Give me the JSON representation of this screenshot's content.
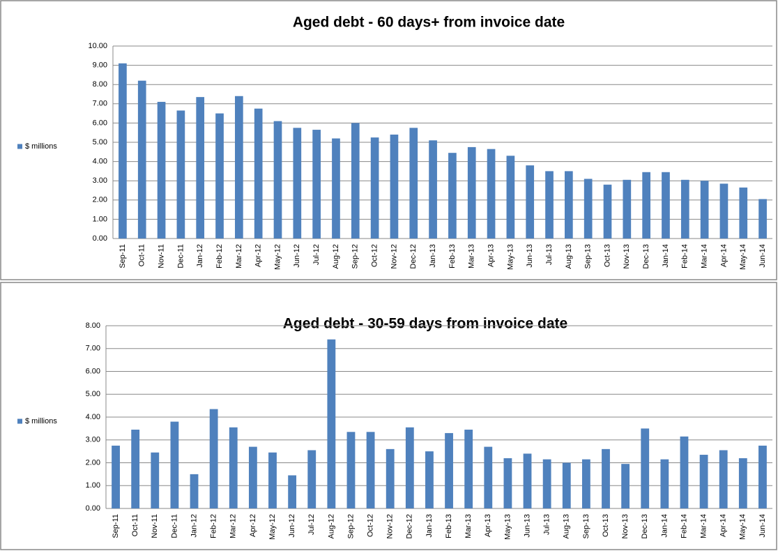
{
  "chart_data": [
    {
      "type": "bar",
      "title": "Aged debt - 60 days+ from invoice date",
      "categories": [
        "Sep-11",
        "Oct-11",
        "Nov-11",
        "Dec-11",
        "Jan-12",
        "Feb-12",
        "Mar-12",
        "Apr-12",
        "May-12",
        "Jun-12",
        "Jul-12",
        "Aug-12",
        "Sep-12",
        "Oct-12",
        "Nov-12",
        "Dec-12",
        "Jan-13",
        "Feb-13",
        "Mar-13",
        "Apr-13",
        "May-13",
        "Jun-13",
        "Jul-13",
        "Aug-13",
        "Sep-13",
        "Oct-13",
        "Nov-13",
        "Dec-13",
        "Jan-14",
        "Feb-14",
        "Mar-14",
        "Apr-14",
        "May-14",
        "Jun-14"
      ],
      "series": [
        {
          "name": "$ millions",
          "color": "#4f81bd",
          "values": [
            9.1,
            8.2,
            7.1,
            6.65,
            7.35,
            6.5,
            7.4,
            6.75,
            6.1,
            5.75,
            5.65,
            5.2,
            6.0,
            5.25,
            5.4,
            5.75,
            5.1,
            4.45,
            4.75,
            4.65,
            4.3,
            3.8,
            3.5,
            3.5,
            3.1,
            2.8,
            3.05,
            3.45,
            3.45,
            3.05,
            3.0,
            2.85,
            2.65,
            2.05
          ]
        }
      ],
      "ylim": [
        0,
        10
      ],
      "yticks": [
        {
          "value": 0,
          "label": "0.00"
        },
        {
          "value": 1,
          "label": "1.00"
        },
        {
          "value": 2,
          "label": "2.00"
        },
        {
          "value": 3,
          "label": "3.00"
        },
        {
          "value": 4,
          "label": "4.00"
        },
        {
          "value": 5,
          "label": "5.00"
        },
        {
          "value": 6,
          "label": "6.00"
        },
        {
          "value": 7,
          "label": "7.00"
        },
        {
          "value": 8,
          "label": "8.00"
        },
        {
          "value": 9,
          "label": "9.00"
        },
        {
          "value": 10,
          "label": "10.00"
        }
      ],
      "grid": true,
      "legend": "left"
    },
    {
      "type": "bar",
      "title": "Aged debt - 30-59 days from invoice date",
      "categories": [
        "Sep-11",
        "Oct-11",
        "Nov-11",
        "Dec-11",
        "Jan-12",
        "Feb-12",
        "Mar-12",
        "Apr-12",
        "May-12",
        "Jun-12",
        "Jul-12",
        "Aug-12",
        "Sep-12",
        "Oct-12",
        "Nov-12",
        "Dec-12",
        "Jan-13",
        "Feb-13",
        "Mar-13",
        "Apr-13",
        "May-13",
        "Jun-13",
        "Jul-13",
        "Aug-13",
        "Sep-13",
        "Oct-13",
        "Nov-13",
        "Dec-13",
        "Jan-14",
        "Feb-14",
        "Mar-14",
        "Apr-14",
        "May-14",
        "Jun-14"
      ],
      "series": [
        {
          "name": "$ millions",
          "color": "#4f81bd",
          "values": [
            2.75,
            3.45,
            2.45,
            3.8,
            1.5,
            4.35,
            3.55,
            2.7,
            2.45,
            1.45,
            2.55,
            7.4,
            3.35,
            3.35,
            2.6,
            3.55,
            2.5,
            3.3,
            3.45,
            2.7,
            2.2,
            2.4,
            2.15,
            2.0,
            2.15,
            2.6,
            1.95,
            3.5,
            2.15,
            3.15,
            2.35,
            2.55,
            2.2,
            2.75
          ]
        }
      ],
      "ylim": [
        0,
        8
      ],
      "yticks": [
        {
          "value": 0,
          "label": "0.00"
        },
        {
          "value": 1,
          "label": "1.00"
        },
        {
          "value": 2,
          "label": "2.00"
        },
        {
          "value": 3,
          "label": "3.00"
        },
        {
          "value": 4,
          "label": "4.00"
        },
        {
          "value": 5,
          "label": "5.00"
        },
        {
          "value": 6,
          "label": "6.00"
        },
        {
          "value": 7,
          "label": "7.00"
        },
        {
          "value": 8,
          "label": "8.00"
        }
      ],
      "grid": true,
      "legend": "left"
    }
  ]
}
